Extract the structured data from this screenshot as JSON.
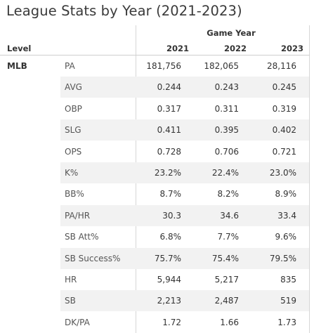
{
  "title": "League Stats by Year (2021-2023)",
  "header": {
    "column_group_label": "Game Year",
    "level_label": "Level",
    "years": [
      "2021",
      "2022",
      "2023"
    ]
  },
  "level": "MLB",
  "rows": [
    {
      "metric": "PA",
      "values": [
        "181,756",
        "182,065",
        "28,116"
      ]
    },
    {
      "metric": "AVG",
      "values": [
        "0.244",
        "0.243",
        "0.245"
      ]
    },
    {
      "metric": "OBP",
      "values": [
        "0.317",
        "0.311",
        "0.319"
      ]
    },
    {
      "metric": "SLG",
      "values": [
        "0.411",
        "0.395",
        "0.402"
      ]
    },
    {
      "metric": "OPS",
      "values": [
        "0.728",
        "0.706",
        "0.721"
      ]
    },
    {
      "metric": "K%",
      "values": [
        "23.2%",
        "22.4%",
        "23.0%"
      ]
    },
    {
      "metric": "BB%",
      "values": [
        "8.7%",
        "8.2%",
        "8.9%"
      ]
    },
    {
      "metric": "PA/HR",
      "values": [
        "30.3",
        "34.6",
        "33.4"
      ]
    },
    {
      "metric": "SB Att%",
      "values": [
        "6.8%",
        "7.7%",
        "9.6%"
      ]
    },
    {
      "metric": "SB Success%",
      "values": [
        "75.7%",
        "75.4%",
        "79.5%"
      ]
    },
    {
      "metric": "HR",
      "values": [
        "5,944",
        "5,217",
        "835"
      ]
    },
    {
      "metric": "SB",
      "values": [
        "2,213",
        "2,487",
        "519"
      ]
    },
    {
      "metric": "DK/PA",
      "values": [
        "1.72",
        "1.66",
        "1.73"
      ]
    }
  ]
}
